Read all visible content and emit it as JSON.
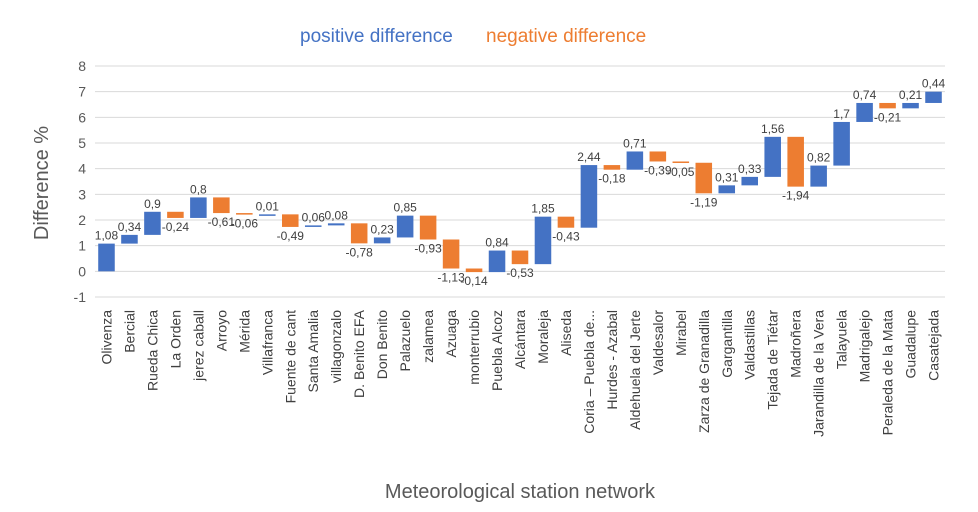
{
  "chart_data": {
    "type": "waterfall",
    "xlabel": "Meteorological station network",
    "ylabel": "Difference %",
    "ylim": [
      -1,
      8
    ],
    "yticks": [
      -1,
      0,
      1,
      2,
      3,
      4,
      5,
      6,
      7,
      8
    ],
    "grid": "horizontal",
    "legend_position": "top",
    "legend": [
      {
        "name": "positive difference",
        "color": "#4472C4"
      },
      {
        "name": "negative difference",
        "color": "#ED7D31"
      }
    ],
    "categories": [
      "Olivenza",
      "Bercial",
      "Rueda Chica",
      "La Orden",
      "jerez caball",
      "Arroyo",
      "Mérida",
      "Villafranca",
      "Fuente de cant",
      "Santa Amalia",
      "villagonzalo",
      "D. Benito EFA",
      "Don Benito",
      "Palazuelo",
      "zalamea",
      "Azuaga",
      "monterrubio",
      "Puebla Alcoz",
      "Alcántara",
      "Moraleja",
      "Aliseda",
      "Coria – Puebla de...",
      "Hurdes - Azabal",
      "Aldehuela del Jerte",
      "Valdesalor",
      "Mirabel",
      "Zarza de Granadilla",
      "Gargantilla",
      "Valdastillas",
      "Tejada de Tiétar",
      "Madroñera",
      "Jarandilla de la Vera",
      "Talayuela",
      "Madrigalejo",
      "Peraleda de la Mata",
      "Guadalupe",
      "Casatejada"
    ],
    "values": [
      1.08,
      0.34,
      0.9,
      -0.24,
      0.8,
      -0.61,
      -0.06,
      0.01,
      -0.49,
      0.06,
      0.08,
      -0.78,
      0.23,
      0.85,
      -0.93,
      -1.13,
      -0.14,
      0.84,
      -0.53,
      1.85,
      -0.43,
      2.44,
      -0.18,
      0.71,
      -0.39,
      -0.05,
      -1.19,
      0.31,
      0.33,
      1.56,
      -1.94,
      0.82,
      1.7,
      0.74,
      -0.21,
      0.21,
      0.44
    ],
    "value_labels": [
      "1,08",
      "0,34",
      "0,9",
      "-0,24",
      "0,8",
      "-0,61",
      "-0,06",
      "0,01",
      "-0,49",
      "0,06",
      "0,08",
      "-0,78",
      "0,23",
      "0,85",
      "-0,93",
      "-1,13",
      "-0,14",
      "0,84",
      "-0,53",
      "1,85",
      "-0,43",
      "2,44",
      "-0,18",
      "0,71",
      "-0,39",
      "-0,05",
      "-1,19",
      "0,31",
      "0,33",
      "1,56",
      "-1,94",
      "0,82",
      "1,7",
      "0,74",
      "-0,21",
      "0,21",
      "0,44"
    ],
    "colors": {
      "positive": "#4472C4",
      "negative": "#ED7D31",
      "grid": "#D9D9D9"
    }
  }
}
